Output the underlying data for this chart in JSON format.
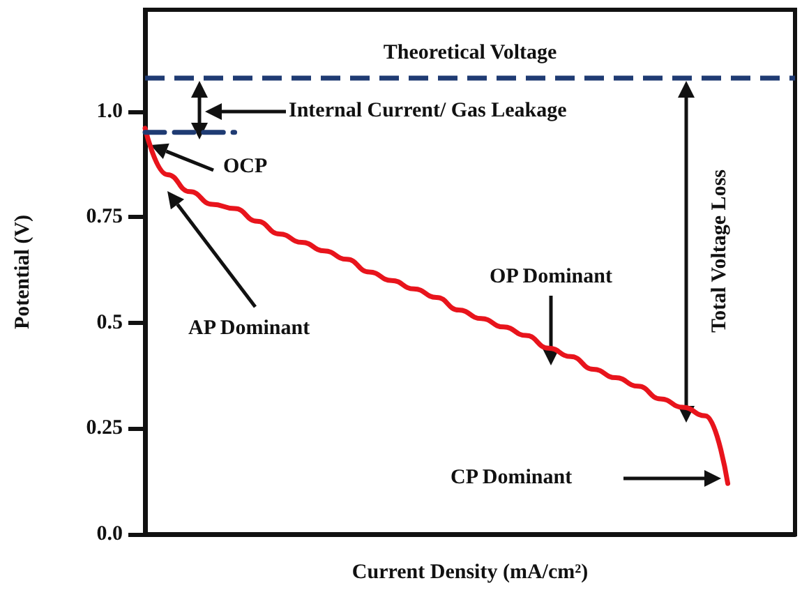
{
  "chart_data": {
    "type": "line",
    "xlabel": "Current Density (mA/cm²)",
    "ylabel": "Potential (V)",
    "categories": [
      null,
      null,
      null,
      null,
      null,
      null,
      null,
      null,
      null,
      null,
      null,
      null,
      null,
      null,
      null,
      null,
      null,
      null,
      null,
      null,
      null,
      null,
      null,
      null,
      null,
      null,
      null,
      null,
      null,
      null
    ],
    "series": [
      {
        "color": "#e8141c",
        "line_style": "solid",
        "values": [
          0.96,
          0.85,
          0.81,
          0.78,
          0.77,
          0.74,
          0.71,
          0.69,
          0.67,
          0.65,
          0.62,
          0.6,
          0.58,
          0.56,
          0.53,
          0.51,
          0.49,
          0.47,
          0.44,
          0.42,
          0.39,
          0.37,
          0.35,
          0.32,
          0.3,
          0.28,
          0.12,
          null,
          null,
          null
        ]
      },
      {
        "color": "#1f3b73",
        "line_style": "dashed",
        "values": [
          0.95,
          0.95,
          0.95,
          0.95,
          0.95,
          null,
          null,
          null,
          null,
          null,
          null,
          null,
          null,
          null,
          null,
          null,
          null,
          null,
          null,
          null,
          null,
          null,
          null,
          null,
          null,
          null,
          null,
          null,
          null,
          null
        ]
      }
    ],
    "ref_lines": [
      {
        "axis": "y",
        "value": 1.08,
        "label": "Theoretical Voltage",
        "color": "#1f3b73",
        "line_style": "dashed"
      }
    ],
    "annotations": [
      "Internal Current/ Gas Leakage",
      "OCP",
      "AP Dominant",
      "OP Dominant",
      "Total Voltage Loss",
      "CP Dominant"
    ],
    "ylim": [
      0,
      1.24
    ],
    "yticks": [
      {
        "value": 0,
        "label": "0.0"
      },
      0.25,
      0.5,
      0.75,
      {
        "value": 1,
        "label": "1.0"
      }
    ],
    "grid": false
  }
}
